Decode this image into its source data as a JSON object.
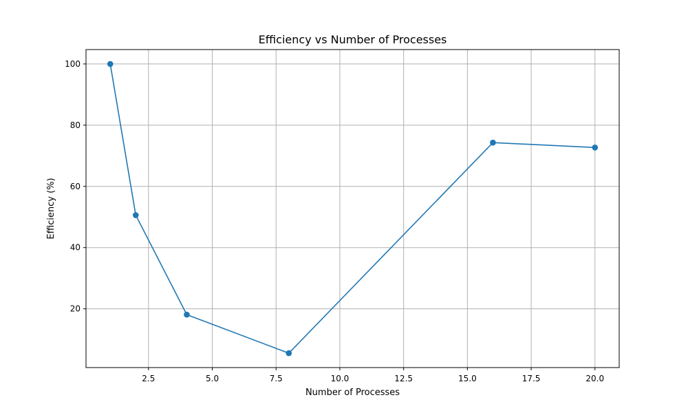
{
  "chart_data": {
    "type": "line",
    "title": "Efficiency vs Number of Processes",
    "xlabel": "Number of Processes",
    "ylabel": "Efficiency (%)",
    "xlim": [
      0.05,
      20.95
    ],
    "ylim": [
      0.8,
      104.7
    ],
    "grid": true,
    "x": [
      1,
      2,
      4,
      8,
      16,
      20
    ],
    "series": [
      {
        "values": [
          100.0,
          50.6,
          18.1,
          5.5,
          74.3,
          72.7
        ],
        "color": "#1f77b4",
        "marker": "circle"
      }
    ],
    "x_ticks": [
      2.5,
      5.0,
      7.5,
      10.0,
      12.5,
      15.0,
      17.5,
      20.0
    ],
    "x_tick_labels": [
      "2.5",
      "5.0",
      "7.5",
      "10.0",
      "12.5",
      "15.0",
      "17.5",
      "20.0"
    ],
    "y_ticks": [
      20,
      40,
      60,
      80,
      100
    ],
    "y_tick_labels": [
      "20",
      "40",
      "60",
      "80",
      "100"
    ]
  }
}
